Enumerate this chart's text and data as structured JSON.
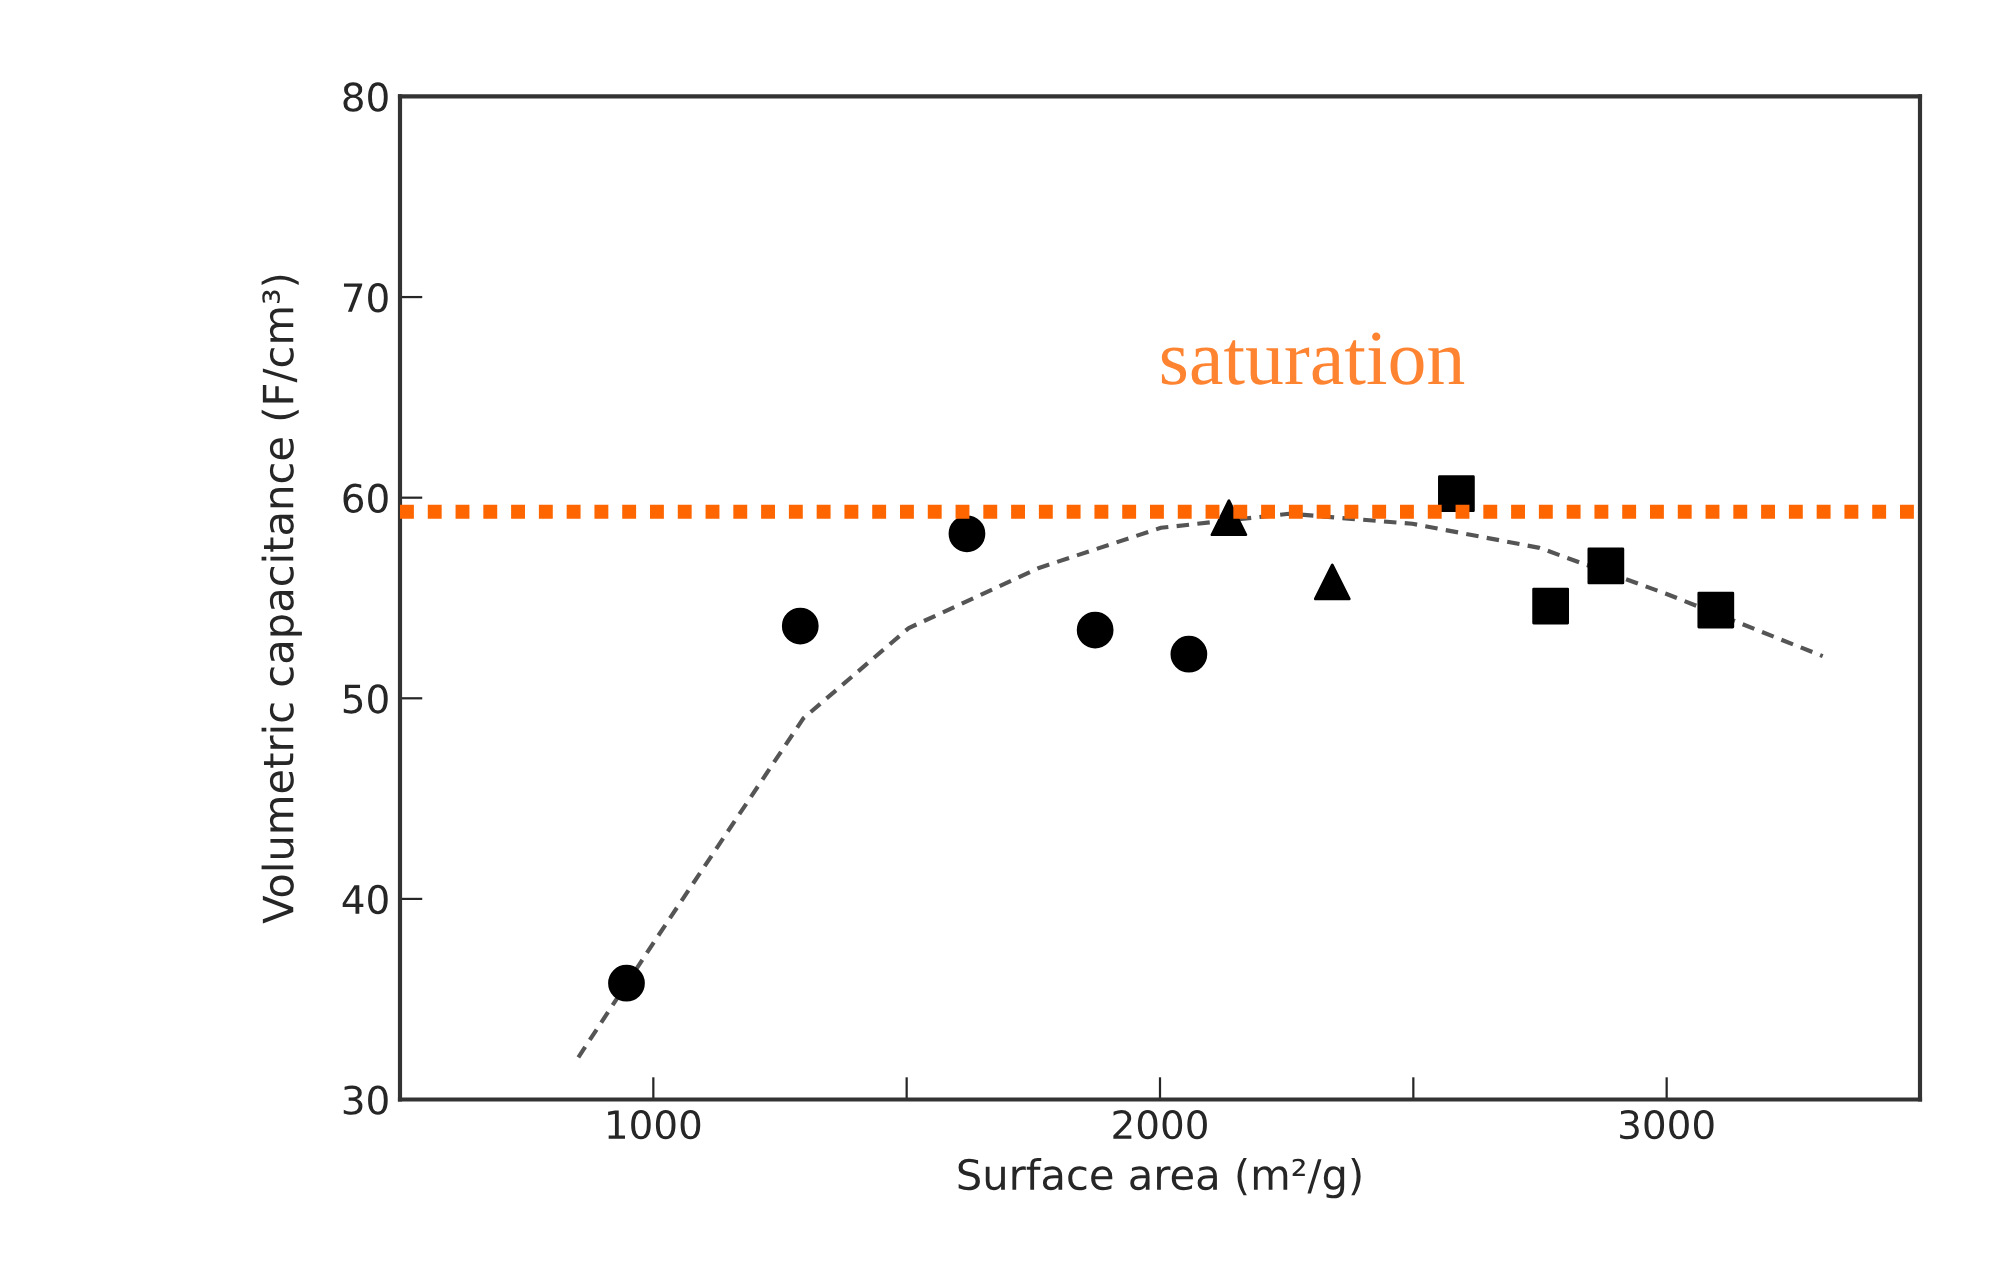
{
  "chart_data": {
    "type": "scatter",
    "xlabel": "Surface area (m²/g)",
    "ylabel": "Volumetric capacitance (F/cm³)",
    "xlim": [
      500,
      3500
    ],
    "ylim": [
      30,
      80
    ],
    "xticks": [
      1000,
      {
        "value": 1500,
        "label": null
      },
      2000,
      {
        "value": 2500,
        "label": null
      },
      3000
    ],
    "yticks": [
      30,
      40,
      50,
      60,
      70,
      80
    ],
    "grid": false,
    "legend": false,
    "series": [
      {
        "color": "#000000",
        "marker": "circle",
        "x": [
          947,
          1290,
          1619,
          1872,
          2057
        ],
        "values": [
          35.8,
          53.6,
          58.2,
          53.4,
          52.2
        ]
      },
      {
        "color": "#000000",
        "marker": "triangle",
        "x": [
          2136,
          2340
        ],
        "values": [
          59.0,
          55.8
        ]
      },
      {
        "color": "#000000",
        "marker": "square",
        "x": [
          2585,
          2771,
          2880,
          3097
        ],
        "values": [
          60.2,
          54.6,
          56.6,
          54.4
        ]
      },
      {
        "type": "line",
        "color": "#555555",
        "line_style": "dashed",
        "marker": "none",
        "x": [
          852,
          1000,
          1296,
          1504,
          1761,
          2002,
          2255,
          2498,
          2749,
          3000,
          3308
        ],
        "values": [
          32.1,
          37.8,
          49.0,
          53.5,
          56.5,
          58.5,
          59.2,
          58.7,
          57.5,
          55.2,
          52.1
        ]
      }
    ],
    "ref_lines": [
      {
        "axis": "y",
        "value": 59.3,
        "label": "saturation",
        "color": "#ff6600",
        "line_style": "dotted"
      }
    ]
  }
}
